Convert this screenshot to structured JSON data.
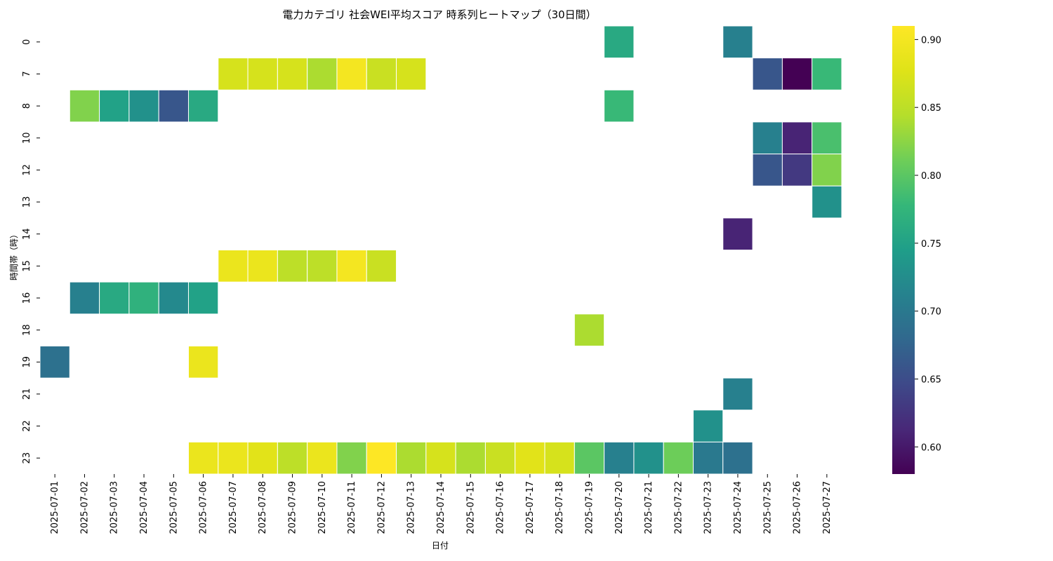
{
  "chart_data": {
    "type": "heatmap",
    "title": "電力カテゴリ 社会WEI平均スコア 時系列ヒートマップ（30日間）",
    "xlabel": "日付",
    "ylabel": "時間帯（時）",
    "x": [
      "2025-07-01",
      "2025-07-02",
      "2025-07-03",
      "2025-07-04",
      "2025-07-05",
      "2025-07-06",
      "2025-07-07",
      "2025-07-08",
      "2025-07-09",
      "2025-07-10",
      "2025-07-11",
      "2025-07-12",
      "2025-07-13",
      "2025-07-14",
      "2025-07-15",
      "2025-07-16",
      "2025-07-17",
      "2025-07-18",
      "2025-07-19",
      "2025-07-20",
      "2025-07-21",
      "2025-07-22",
      "2025-07-23",
      "2025-07-24",
      "2025-07-25",
      "2025-07-26",
      "2025-07-27"
    ],
    "y": [
      "0",
      "7",
      "8",
      "10",
      "12",
      "13",
      "14",
      "15",
      "16",
      "18",
      "19",
      "21",
      "22",
      "23"
    ],
    "values": [
      [
        null,
        null,
        null,
        null,
        null,
        null,
        null,
        null,
        null,
        null,
        null,
        null,
        null,
        null,
        null,
        null,
        null,
        null,
        null,
        0.76,
        null,
        null,
        null,
        0.71,
        null,
        null,
        null
      ],
      [
        null,
        null,
        null,
        null,
        null,
        null,
        0.87,
        0.87,
        0.87,
        0.84,
        0.9,
        0.86,
        0.87,
        null,
        null,
        null,
        null,
        null,
        null,
        null,
        null,
        null,
        null,
        null,
        0.66,
        0.58,
        0.78
      ],
      [
        null,
        0.82,
        0.75,
        0.73,
        0.66,
        0.76,
        null,
        null,
        null,
        null,
        null,
        null,
        null,
        null,
        null,
        null,
        null,
        null,
        null,
        0.78,
        null,
        null,
        null,
        null,
        null,
        null,
        null
      ],
      [
        null,
        null,
        null,
        null,
        null,
        null,
        null,
        null,
        null,
        null,
        null,
        null,
        null,
        null,
        null,
        null,
        null,
        null,
        null,
        null,
        null,
        null,
        null,
        null,
        0.71,
        0.61,
        0.79
      ],
      [
        null,
        null,
        null,
        null,
        null,
        null,
        null,
        null,
        null,
        null,
        null,
        null,
        null,
        null,
        null,
        null,
        null,
        null,
        null,
        null,
        null,
        null,
        null,
        null,
        0.66,
        0.63,
        0.82
      ],
      [
        null,
        null,
        null,
        null,
        null,
        null,
        null,
        null,
        null,
        null,
        null,
        null,
        null,
        null,
        null,
        null,
        null,
        null,
        null,
        null,
        null,
        null,
        null,
        null,
        null,
        null,
        0.73
      ],
      [
        null,
        null,
        null,
        null,
        null,
        null,
        null,
        null,
        null,
        null,
        null,
        null,
        null,
        null,
        null,
        null,
        null,
        null,
        null,
        null,
        null,
        null,
        null,
        0.61,
        null,
        null,
        null
      ],
      [
        null,
        null,
        null,
        null,
        null,
        null,
        0.89,
        0.89,
        0.85,
        0.85,
        0.9,
        0.86,
        null,
        null,
        null,
        null,
        null,
        null,
        null,
        null,
        null,
        null,
        null,
        null,
        null,
        null,
        null
      ],
      [
        null,
        0.71,
        0.76,
        0.77,
        0.72,
        0.75,
        null,
        null,
        null,
        null,
        null,
        null,
        null,
        null,
        null,
        null,
        null,
        null,
        null,
        null,
        null,
        null,
        null,
        null,
        null,
        null,
        null
      ],
      [
        null,
        null,
        null,
        null,
        null,
        null,
        null,
        null,
        null,
        null,
        null,
        null,
        null,
        null,
        null,
        null,
        null,
        null,
        0.84,
        null,
        null,
        null,
        null,
        null,
        null,
        null,
        null
      ],
      [
        0.69,
        null,
        null,
        null,
        null,
        0.89,
        null,
        null,
        null,
        null,
        null,
        null,
        null,
        null,
        null,
        null,
        null,
        null,
        null,
        null,
        null,
        null,
        null,
        null,
        null,
        null,
        null
      ],
      [
        null,
        null,
        null,
        null,
        null,
        null,
        null,
        null,
        null,
        null,
        null,
        null,
        null,
        null,
        null,
        null,
        null,
        null,
        null,
        null,
        null,
        null,
        null,
        0.71,
        null,
        null,
        null
      ],
      [
        null,
        null,
        null,
        null,
        null,
        null,
        null,
        null,
        null,
        null,
        null,
        null,
        null,
        null,
        null,
        null,
        null,
        null,
        null,
        null,
        null,
        null,
        0.73,
        null,
        null,
        null,
        null
      ],
      [
        null,
        null,
        null,
        null,
        null,
        0.89,
        0.89,
        0.88,
        0.85,
        0.89,
        0.82,
        0.91,
        0.84,
        0.87,
        0.84,
        0.86,
        0.88,
        0.87,
        0.8,
        0.71,
        0.73,
        0.81,
        0.7,
        0.69,
        null,
        null,
        null
      ]
    ],
    "colormap": "viridis",
    "vmin": 0.58,
    "vmax": 0.91,
    "colorbar_ticks": [
      "0.60",
      "0.65",
      "0.70",
      "0.75",
      "0.80",
      "0.85",
      "0.90"
    ],
    "colorbar_tick_values": [
      0.6,
      0.65,
      0.7,
      0.75,
      0.8,
      0.85,
      0.9
    ],
    "grid": false
  }
}
